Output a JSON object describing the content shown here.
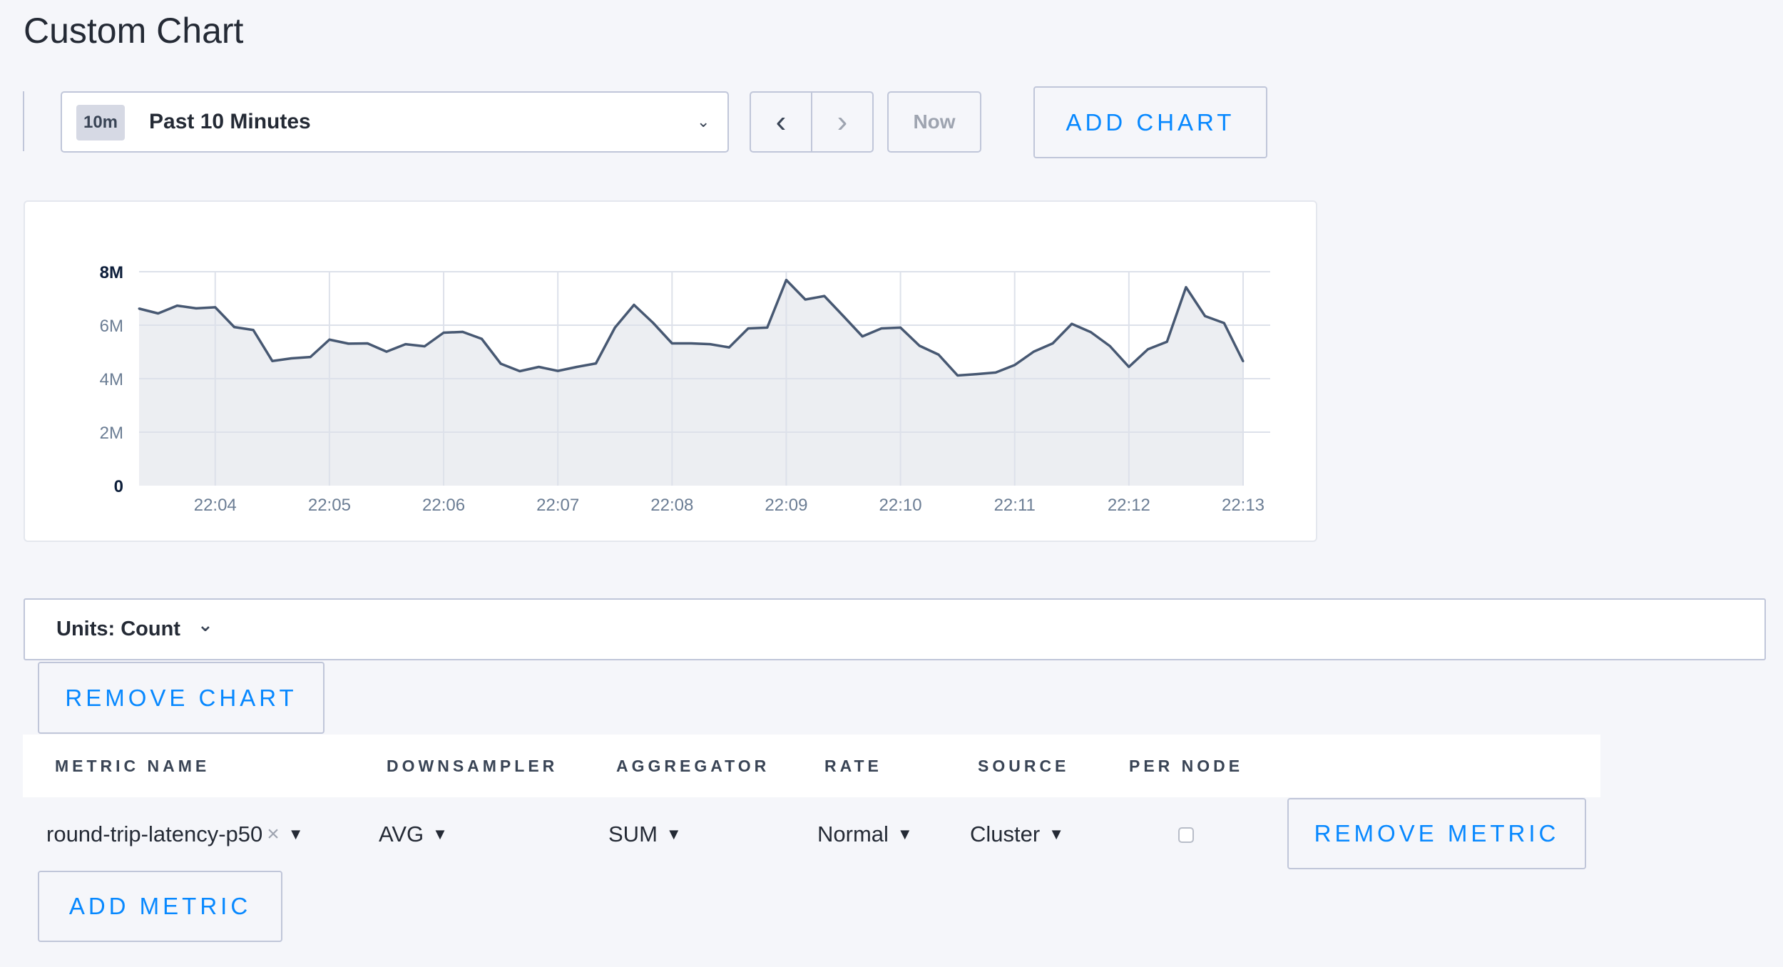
{
  "page": {
    "title": "Custom Chart"
  },
  "time_selector": {
    "badge": "10m",
    "label": "Past 10 Minutes",
    "chevron_icon": "chevron-down-icon"
  },
  "nav": {
    "prev_icon": "chevron-left-icon",
    "prev_glyph": "‹",
    "next_icon": "chevron-right-icon",
    "next_glyph": "›",
    "now_label": "Now"
  },
  "toolbar": {
    "add_chart_label": "ADD CHART"
  },
  "colors": {
    "accent": "#0788ff",
    "line": "#475872",
    "area": "#eceef2",
    "grid": "#dde1ea"
  },
  "chart_data": {
    "type": "area",
    "x_start": "22:03:20",
    "x_interval_seconds": 10,
    "x_tick_labels": [
      "22:04",
      "22:05",
      "22:06",
      "22:07",
      "22:08",
      "22:09",
      "22:10",
      "22:11",
      "22:12",
      "22:13"
    ],
    "y_tick_labels": [
      "0",
      "2M",
      "4M",
      "6M",
      "8M"
    ],
    "ylim": [
      0,
      8000000
    ],
    "grid": true,
    "values": [
      6.62,
      6.44,
      6.73,
      6.63,
      6.67,
      5.93,
      5.82,
      4.66,
      4.76,
      4.81,
      5.46,
      5.31,
      5.32,
      5.01,
      5.29,
      5.21,
      5.72,
      5.75,
      5.49,
      4.56,
      4.28,
      4.44,
      4.29,
      4.44,
      4.57,
      5.91,
      6.76,
      6.09,
      5.32,
      5.32,
      5.29,
      5.17,
      5.88,
      5.91,
      7.69,
      6.96,
      7.09,
      6.34,
      5.58,
      5.88,
      5.91,
      5.23,
      4.9,
      4.12,
      4.17,
      4.23,
      4.51,
      5.01,
      5.32,
      6.05,
      5.74,
      5.22,
      4.44,
      5.1,
      5.38,
      7.42,
      6.34,
      6.08,
      4.65
    ],
    "values_unit": "M"
  },
  "units": {
    "label": "Units: Count",
    "chevron_glyph": "⌄"
  },
  "remove_chart_label": "REMOVE CHART",
  "table": {
    "headers": [
      "METRIC NAME",
      "DOWNSAMPLER",
      "AGGREGATOR",
      "RATE",
      "SOURCE",
      "PER NODE"
    ],
    "row": {
      "metric": "round-trip-latency-p50",
      "clear_glyph": "×",
      "downsampler": "AVG",
      "aggregator": "SUM",
      "rate": "Normal",
      "source": "Cluster",
      "per_node": false,
      "caret": "▼"
    },
    "remove_metric_label": "REMOVE METRIC"
  },
  "add_metric_label": "ADD METRIC"
}
